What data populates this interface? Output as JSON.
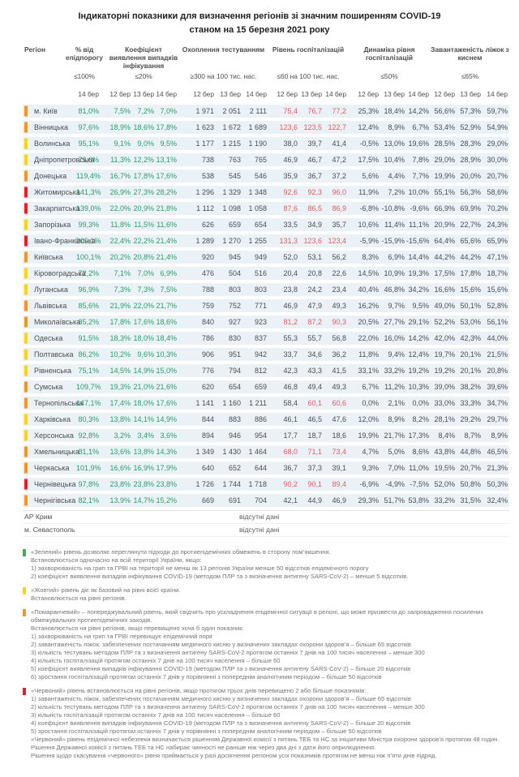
{
  "title": {
    "line1": "Індикаторні показники для визначення регіонів зі значним поширенням COVID-19",
    "line2": "станом на 15 березня 2021 року"
  },
  "colors": {
    "levels": {
      "green": "#39b54a",
      "yellow": "#ffd500",
      "orange": "#f7941e",
      "red": "#ec1c24"
    },
    "value_green": "#2a9d64",
    "value_red": "#e05c5c",
    "value_gray": "#4d4d4d",
    "row_bg": "#eaf2f8"
  },
  "table": {
    "header": {
      "region_label": "Регіон",
      "groups": [
        {
          "label": "% від епідпорогу",
          "threshold": "≤100%",
          "dates": [
            "14 бер"
          ]
        },
        {
          "label": "Коефіцієнт виявлення випадків інфікування",
          "threshold": "≤20%",
          "dates": [
            "12 бер",
            "13 бер",
            "14 бер"
          ]
        },
        {
          "label": "Охоплення тестуванням",
          "threshold": "≥300 на 100 тис. нас.",
          "dates": [
            "12 бер",
            "13 бер",
            "14 бер"
          ]
        },
        {
          "label": "Рівень госпіталізацій",
          "threshold": "≤60 на 100 тис. нас.",
          "dates": [
            "12 бер",
            "13 бер",
            "14 бер"
          ]
        },
        {
          "label": "Динаміка рівня госпіталізацій",
          "threshold": "≤50%",
          "dates": [
            "12 бер",
            "13 бер",
            "14 бер"
          ]
        },
        {
          "label": "Завантаженість ліжок з киснем",
          "threshold": "≤65%",
          "dates": [
            "12 бер",
            "13 бер",
            "14 бер"
          ]
        }
      ]
    },
    "hosp_red_threshold": 60,
    "rows": [
      {
        "region": "м. Київ",
        "level": "orange",
        "values": [
          "81,0%",
          "7,5%",
          "7,2%",
          "7,0%",
          "1 971",
          "2 051",
          "2 111",
          "75,4",
          "76,7",
          "77,2",
          "25,3%",
          "18,4%",
          "14,2%",
          "56,6%",
          "57,3%",
          "59,7%"
        ]
      },
      {
        "region": "Вінницька",
        "level": "orange",
        "values": [
          "97,6%",
          "18,9%",
          "18,6%",
          "17,8%",
          "1 623",
          "1 672",
          "1 689",
          "123,6",
          "123,5",
          "122,7",
          "12,4%",
          "8,9%",
          "6,7%",
          "53,4%",
          "52,9%",
          "54,9%"
        ]
      },
      {
        "region": "Волинська",
        "level": "yellow",
        "values": [
          "95,1%",
          "9,1%",
          "9,0%",
          "9,5%",
          "1 177",
          "1 215",
          "1 190",
          "38,0",
          "39,7",
          "41,4",
          "-0,5%",
          "13,0%",
          "19,6%",
          "28,5%",
          "28,3%",
          "29,0%"
        ]
      },
      {
        "region": "Дніпропетровська",
        "level": "yellow",
        "values": [
          "79,6%",
          "11,3%",
          "12,2%",
          "13,1%",
          "738",
          "763",
          "765",
          "46,9",
          "46,7",
          "47,2",
          "17,5%",
          "10,4%",
          "7,8%",
          "29,0%",
          "28,9%",
          "30,0%"
        ]
      },
      {
        "region": "Донецька",
        "level": "orange",
        "values": [
          "119,4%",
          "16,7%",
          "17,8%",
          "17,6%",
          "538",
          "545",
          "546",
          "35,9",
          "36,7",
          "37,2",
          "5,6%",
          "4,4%",
          "7,7%",
          "19,9%",
          "20,0%",
          "20,7%"
        ]
      },
      {
        "region": "Житомирська",
        "level": "red",
        "values": [
          "141,3%",
          "26,9%",
          "27,3%",
          "28,2%",
          "1 296",
          "1 329",
          "1 348",
          "92,6",
          "92,3",
          "96,0",
          "11,9%",
          "7,2%",
          "10,0%",
          "55,1%",
          "56,3%",
          "58,6%"
        ]
      },
      {
        "region": "Закарпатська",
        "level": "red",
        "values": [
          "139,0%",
          "22,0%",
          "20,9%",
          "21,8%",
          "1 112",
          "1 098",
          "1 058",
          "87,6",
          "86,5",
          "86,9",
          "-6,8%",
          "-10,8%",
          "-9,6%",
          "66,9%",
          "69,9%",
          "70,2%"
        ]
      },
      {
        "region": "Запорізька",
        "level": "yellow",
        "values": [
          "99,3%",
          "11,8%",
          "11,5%",
          "11,6%",
          "626",
          "659",
          "654",
          "33,5",
          "34,9",
          "35,7",
          "10,6%",
          "11,4%",
          "11,1%",
          "20,9%",
          "22,7%",
          "24,3%"
        ]
      },
      {
        "region": "Івано-Франківська",
        "level": "red",
        "values": [
          "209,1%",
          "22,4%",
          "22,2%",
          "21,4%",
          "1 289",
          "1 270",
          "1 255",
          "131,3",
          "123,6",
          "123,4",
          "-5,9%",
          "-15,9%",
          "-15,6%",
          "64,4%",
          "65,6%",
          "65,9%"
        ]
      },
      {
        "region": "Київська",
        "level": "orange",
        "values": [
          "100,1%",
          "20,2%",
          "20,8%",
          "21,4%",
          "920",
          "945",
          "949",
          "52,0",
          "53,1",
          "56,2",
          "8,3%",
          "6,9%",
          "14,4%",
          "44,2%",
          "44,2%",
          "47,1%"
        ]
      },
      {
        "region": "Кіровоградська",
        "level": "yellow",
        "values": [
          "72,2%",
          "7,1%",
          "7,0%",
          "6,9%",
          "476",
          "504",
          "516",
          "20,4",
          "20,8",
          "22,6",
          "14,5%",
          "10,9%",
          "19,3%",
          "17,5%",
          "17,8%",
          "18,7%"
        ]
      },
      {
        "region": "Луганська",
        "level": "yellow",
        "values": [
          "96,9%",
          "7,3%",
          "7,3%",
          "7,5%",
          "788",
          "803",
          "803",
          "23,8",
          "24,2",
          "23,4",
          "40,4%",
          "46,8%",
          "34,2%",
          "16,6%",
          "15,6%",
          "15,6%"
        ]
      },
      {
        "region": "Львівська",
        "level": "orange",
        "values": [
          "85,6%",
          "21,9%",
          "22,0%",
          "21,7%",
          "759",
          "752",
          "771",
          "46,9",
          "47,9",
          "49,3",
          "16,2%",
          "9,7%",
          "9,5%",
          "49,0%",
          "50,1%",
          "52,8%"
        ]
      },
      {
        "region": "Миколаївська",
        "level": "orange",
        "values": [
          "85,2%",
          "17,8%",
          "17,6%",
          "18,6%",
          "840",
          "927",
          "923",
          "81,2",
          "87,2",
          "90,3",
          "20,5%",
          "27,7%",
          "29,1%",
          "52,2%",
          "53,0%",
          "56,1%"
        ]
      },
      {
        "region": "Одеська",
        "level": "yellow",
        "values": [
          "91,5%",
          "18,3%",
          "18,0%",
          "18,4%",
          "786",
          "830",
          "837",
          "55,3",
          "55,7",
          "56,8",
          "22,0%",
          "16,0%",
          "14,2%",
          "42,0%",
          "42,3%",
          "44,0%"
        ]
      },
      {
        "region": "Полтавська",
        "level": "yellow",
        "values": [
          "86,2%",
          "10,2%",
          "9,6%",
          "10,3%",
          "906",
          "951",
          "942",
          "33,7",
          "34,6",
          "36,2",
          "11,8%",
          "9,4%",
          "12,4%",
          "19,7%",
          "20,1%",
          "21,5%"
        ]
      },
      {
        "region": "Рівненська",
        "level": "yellow",
        "values": [
          "75,1%",
          "14,5%",
          "14,9%",
          "15,0%",
          "776",
          "794",
          "812",
          "42,3",
          "43,3",
          "41,5",
          "33,1%",
          "33,2%",
          "19,2%",
          "19,2%",
          "20,1%",
          "20,8%"
        ]
      },
      {
        "region": "Сумська",
        "level": "orange",
        "values": [
          "109,7%",
          "19,3%",
          "21,0%",
          "21,6%",
          "620",
          "654",
          "659",
          "46,8",
          "49,4",
          "49,3",
          "6,7%",
          "11,2%",
          "10,3%",
          "39,0%",
          "38,2%",
          "39,6%"
        ]
      },
      {
        "region": "Тернопільська",
        "level": "orange",
        "values": [
          "147,1%",
          "17,4%",
          "18,0%",
          "17,6%",
          "1 141",
          "1 160",
          "1 211",
          "58,4",
          "60,1",
          "60,6",
          "0,0%",
          "2,1%",
          "0,0%",
          "33,0%",
          "33,3%",
          "34,7%"
        ]
      },
      {
        "region": "Харківська",
        "level": "yellow",
        "values": [
          "80,3%",
          "13,8%",
          "14,1%",
          "14,9%",
          "844",
          "883",
          "886",
          "46,1",
          "46,5",
          "47,6",
          "12,0%",
          "8,9%",
          "8,2%",
          "28,1%",
          "29,2%",
          "29,7%"
        ]
      },
      {
        "region": "Херсонська",
        "level": "yellow",
        "values": [
          "92,8%",
          "3,2%",
          "3,4%",
          "3,6%",
          "894",
          "946",
          "954",
          "17,7",
          "18,7",
          "18,6",
          "19,9%",
          "21,7%",
          "17,3%",
          "8,4%",
          "8,7%",
          "8,9%"
        ]
      },
      {
        "region": "Хмельницька",
        "level": "orange",
        "values": [
          "81,1%",
          "13,6%",
          "13,8%",
          "14,3%",
          "1 349",
          "1 430",
          "1 464",
          "68,0",
          "71,1",
          "73,4",
          "4,7%",
          "5,0%",
          "8,6%",
          "43,8%",
          "44,8%",
          "46,5%"
        ]
      },
      {
        "region": "Черкаська",
        "level": "orange",
        "values": [
          "101,9%",
          "16,6%",
          "16,9%",
          "17,9%",
          "640",
          "652",
          "644",
          "36,7",
          "37,3",
          "39,1",
          "9,3%",
          "7,0%",
          "11,0%",
          "19,5%",
          "20,7%",
          "21,3%"
        ]
      },
      {
        "region": "Чернівецька",
        "level": "red",
        "values": [
          "97,8%",
          "23,8%",
          "23,8%",
          "23,8%",
          "1 726",
          "1 744",
          "1 718",
          "90,2",
          "90,1",
          "89,4",
          "-6,9%",
          "-4,9%",
          "-7,5%",
          "52,0%",
          "50,8%",
          "50,3%"
        ]
      },
      {
        "region": "Чернігівська",
        "level": "orange",
        "values": [
          "82,1%",
          "13,9%",
          "14,7%",
          "15,2%",
          "669",
          "691",
          "704",
          "42,1",
          "44,9",
          "46,9",
          "29,3%",
          "51,7%",
          "53,8%",
          "33,2%",
          "31,5%",
          "32,4%"
        ]
      }
    ],
    "no_data_rows": [
      {
        "region": "АР Крим",
        "status": "відсутні дані"
      },
      {
        "region": "м. Севастополь",
        "status": "відсутні дані"
      }
    ]
  },
  "legend": {
    "blocks": [
      {
        "level": "green",
        "lines": [
          "«Зелений» рівень дозволяє переглянути підходи до протиепідемічних обмежень в сторону пом’якшення.",
          "Встановлюється одночасно на всій території України, якщо:",
          "1) захворюваність на грип та ГРВІ на території не менш як 13 регіонів України менше 50 відсотків епідемічного порогу",
          "2) коефіцієнт виявлення випадків інфікування COVID-19 (методом ПЛР та з визначення антигену SARS-CoV-2) – менше 5 відсотків."
        ]
      },
      {
        "level": "yellow",
        "lines": [
          "«Жовтий» рівень діє як базовий на рівні всієї країни.",
          "Встановлюється на рівні регіонів."
        ]
      },
      {
        "level": "orange",
        "lines": [
          "«Помаранчевий» – попереджувальний рівень, який свідчить про ускладнення епідемічної ситуації в регіоні, що може призвести до запровадження посилених обмежувальних протиепідемічних заходів.",
          "Встановлюється на рівні регіонів, якщо перевищено хоча б один показник:",
          "1) захворюваність на грип та ГРВІ перевищує епідемічний поріг",
          "2) завантаженість ліжок, забезпечених постачанням медичного кисню у визначених закладах охорони здоров’я – більше 65 відсотків",
          "3) кількість тестувань методом ПЛР та з визначення антигену SARS-CoV-2 протягом останніх 7 днів на 100 тисяч населення – менше 300",
          "4) кількість госпіталізацій протягом останніх 7 днів на 100 тисяч населення – більше 60",
          "5) коефіцієнт виявлення випадків інфікування COVID-19 (методом ПЛР та з визначення антигену SARS-CoV-2) – більше 20 відсотків",
          "6) зростання госпіталізацій протягом останніх 7 днів у порівнянні з попереднім аналогічним періодом – більше 50 відсотків"
        ]
      },
      {
        "level": "red",
        "lines": [
          "«Червоний» рівень встановлюється на рівні регіонів, якщо протягом трьох днів перевищено 2 або більше показників:",
          "1) завантаженість ліжок, забезпечених постачанням медичного кисню у визначених закладах охорони здоров’я – більше 65 відсотків",
          "2) кількість тестувань методом ПЛР та з визначення антигену SARS-CoV-2 протягом останніх 7 днів на 100 тисяч населення – менше 300",
          "3) кількість госпіталізацій протягом останніх 7 днів на 100 тисяч населення – більше 60",
          "4) коефіцієнт виявлення випадків інфікування COVID-19 (методом ПЛР та з визначення антигену SARS-CoV-2) – більше 20 відсотків",
          "5) зростання госпіталізацій протягом останніх 7 днів у порівнянні з попереднім аналогічним періодом – більше 50 відсотків",
          "«Червоний» рівень епідемічної небезпеки визначається рішенням Державної комісії з питань ТЕБ та НС за ініціативи Міністра охорони здоров’я протягом 48 годин.",
          "Рішення Державної комісії з питань ТЕБ та НС набирає чинності не раніше ніж через два дні з дати його оприлюднення.",
          "Рішення щодо скасування «червоного» рівня приймається у разі досягнення регіоном усіх показників протягом не менш ніж п’яти днів підряд."
        ]
      }
    ]
  }
}
